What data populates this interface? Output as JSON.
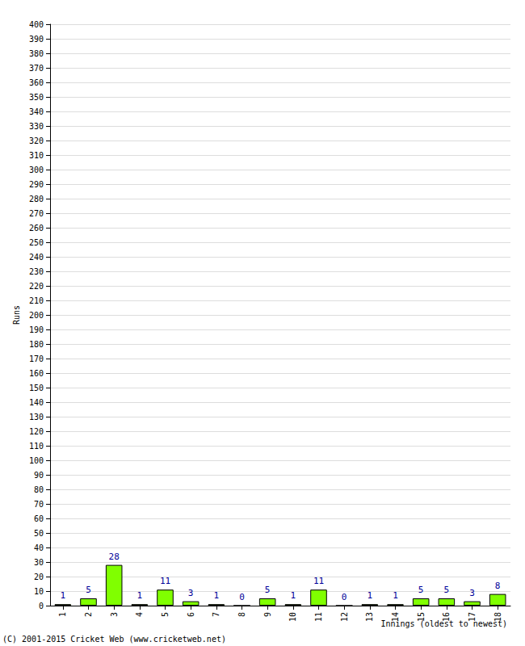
{
  "chart_data": {
    "type": "bar",
    "categories": [
      "1",
      "2",
      "3",
      "4",
      "5",
      "6",
      "7",
      "8",
      "9",
      "10",
      "11",
      "12",
      "13",
      "14",
      "15",
      "16",
      "17",
      "18"
    ],
    "values": [
      1,
      5,
      28,
      1,
      11,
      3,
      1,
      0,
      5,
      1,
      11,
      0,
      1,
      1,
      5,
      5,
      3,
      8
    ],
    "color": "#80ff00",
    "xlabel": "Innings (oldest to newest)",
    "ylabel": "Runs",
    "annotations": [
      "(C) 2001-2015 Cricket Web (www.cricketweb.net)"
    ],
    "ylim": [
      0,
      400
    ],
    "yticks": [
      0,
      10,
      20,
      30,
      40,
      50,
      60,
      70,
      80,
      90,
      100,
      110,
      120,
      130,
      140,
      150,
      160,
      170,
      180,
      190,
      200,
      210,
      220,
      230,
      240,
      250,
      260,
      270,
      280,
      290,
      300,
      310,
      320,
      330,
      340,
      350,
      360,
      370,
      380,
      390,
      400
    ],
    "grid": true,
    "data_labels": true
  }
}
